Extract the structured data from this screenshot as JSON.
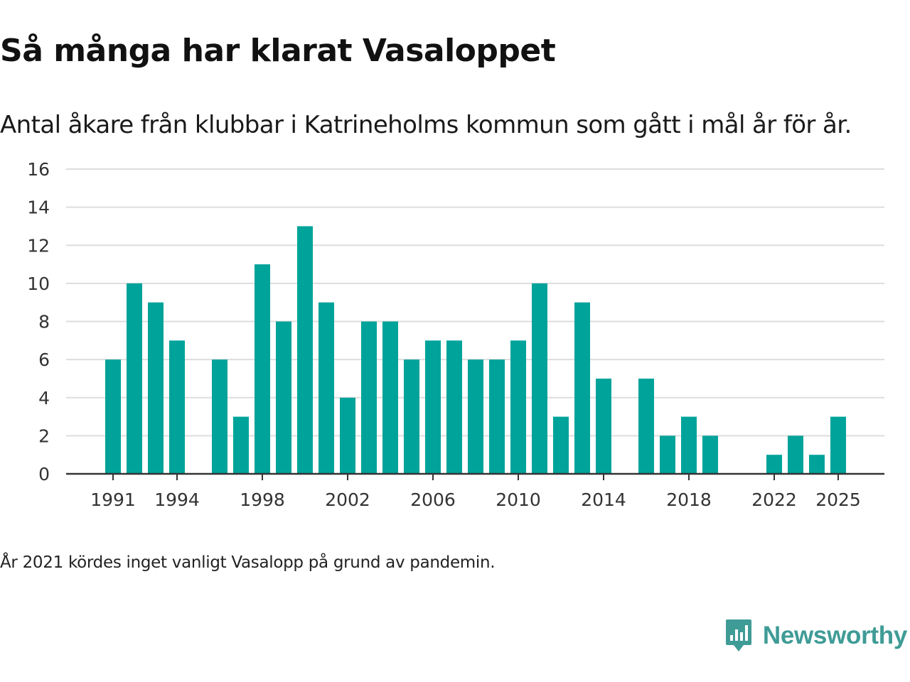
{
  "header": {
    "title": "Så många har klarat Vasaloppet",
    "subtitle": "Antal åkare från klubbar i Katrineholms kommun som gått i mål år för år."
  },
  "footer": {
    "note": "År 2021 kördes inget vanligt Vasalopp på grund av pandemin."
  },
  "brand": {
    "name": "Newsworthy",
    "color": "#3f9b96",
    "icon": "newsworthy-logo-icon"
  },
  "colors": {
    "bar": "#00a39a",
    "grid": "#dddddd",
    "axis": "#333333"
  },
  "chart_data": {
    "type": "bar",
    "title": "Så många har klarat Vasaloppet",
    "xlabel": "",
    "ylabel": "",
    "ylim": [
      0,
      16
    ],
    "yticks": [
      0,
      2,
      4,
      6,
      8,
      10,
      12,
      14,
      16
    ],
    "xticks": [
      1991,
      1994,
      1998,
      2002,
      2006,
      2010,
      2014,
      2018,
      2022,
      2025
    ],
    "grid": true,
    "legend": "none",
    "categories": [
      1991,
      1992,
      1993,
      1994,
      1995,
      1996,
      1997,
      1998,
      1999,
      2000,
      2001,
      2002,
      2003,
      2004,
      2005,
      2006,
      2007,
      2008,
      2009,
      2010,
      2011,
      2012,
      2013,
      2014,
      2015,
      2016,
      2017,
      2018,
      2019,
      2020,
      2021,
      2022,
      2023,
      2024,
      2025
    ],
    "values": [
      6,
      10,
      9,
      7,
      0,
      6,
      3,
      11,
      8,
      13,
      9,
      4,
      8,
      8,
      6,
      7,
      7,
      6,
      6,
      7,
      10,
      3,
      9,
      5,
      0,
      5,
      2,
      3,
      2,
      0,
      0,
      1,
      2,
      1,
      3
    ]
  }
}
